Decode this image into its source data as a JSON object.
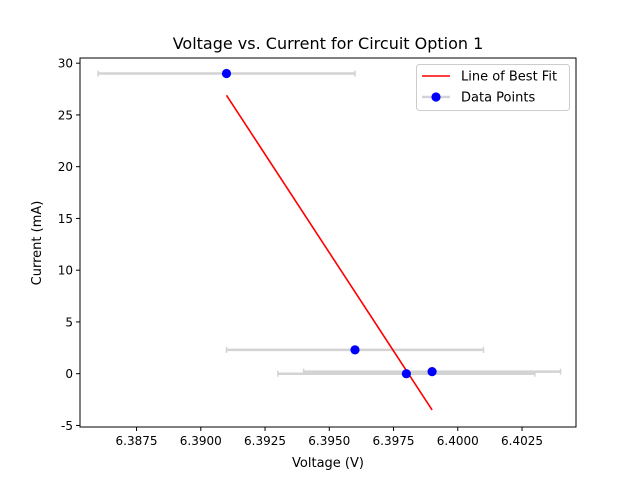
{
  "chart_data": {
    "type": "scatter",
    "title": "Voltage vs. Current for Circuit Option 1",
    "xlabel": "Voltage (V)",
    "ylabel": "Current (mA)",
    "xlim": [
      6.3853,
      6.4046
    ],
    "ylim": [
      -5.15,
      30.5
    ],
    "xticks": [
      "6.3875",
      "6.3900",
      "6.3925",
      "6.3950",
      "6.3975",
      "6.4000",
      "6.4025"
    ],
    "yticks": [
      "-5",
      "0",
      "5",
      "10",
      "15",
      "20",
      "25",
      "30"
    ],
    "grid": false,
    "legend_position": "top-right",
    "series": [
      {
        "name": "Data Points",
        "kind": "points-with-x-error",
        "color": "#0000ff",
        "error_color": "#d3d3d3",
        "points": [
          {
            "x": 6.391,
            "y": 29.0,
            "xerr": 0.005
          },
          {
            "x": 6.396,
            "y": 2.3,
            "xerr": 0.005
          },
          {
            "x": 6.398,
            "y": 0.0,
            "xerr": 0.005
          },
          {
            "x": 6.399,
            "y": 0.2,
            "xerr": 0.005
          }
        ]
      },
      {
        "name": "Line of Best Fit",
        "kind": "line",
        "color": "#ff0000",
        "points": [
          {
            "x": 6.391,
            "y": 26.9
          },
          {
            "x": 6.399,
            "y": -3.5
          }
        ]
      }
    ]
  }
}
